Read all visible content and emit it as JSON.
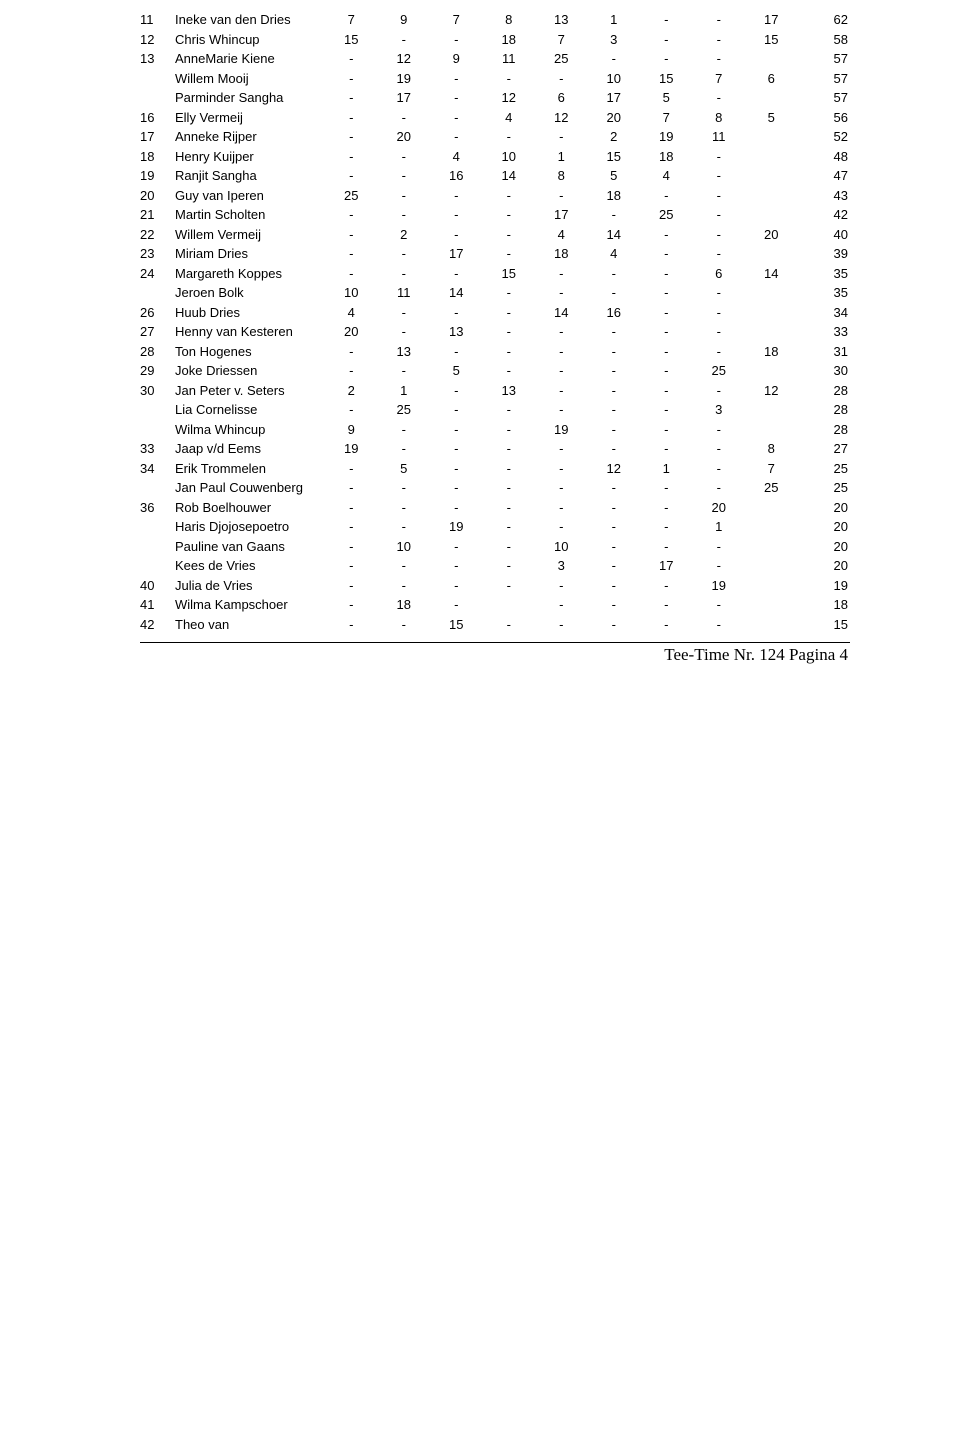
{
  "footer": "Tee-Time Nr. 124 Pagina  4",
  "cols": {
    "rank_align": "left",
    "name_align": "left",
    "value_align": "center",
    "total_align": "right",
    "font_size": 13,
    "text_color": "#000000",
    "background": "#ffffff",
    "rule_color": "#000000"
  },
  "rows": [
    {
      "rank": "11",
      "name": "Ineke van den Dries",
      "v": [
        "7",
        "9",
        "7",
        "8",
        "13",
        "1",
        "-",
        "-",
        "17"
      ],
      "total": "62"
    },
    {
      "rank": "12",
      "name": "Chris Whincup",
      "v": [
        "15",
        "-",
        "-",
        "18",
        "7",
        "3",
        "-",
        "-",
        "15"
      ],
      "total": "58"
    },
    {
      "rank": "13",
      "name": "AnneMarie Kiene",
      "v": [
        "-",
        "12",
        "9",
        "11",
        "25",
        "-",
        "-",
        "-",
        ""
      ],
      "total": "57"
    },
    {
      "rank": "",
      "name": "Willem Mooij",
      "v": [
        "-",
        "19",
        "-",
        "-",
        "-",
        "10",
        "15",
        "7",
        "6"
      ],
      "total": "57"
    },
    {
      "rank": "",
      "name": "Parminder Sangha",
      "v": [
        "-",
        "17",
        "-",
        "12",
        "6",
        "17",
        "5",
        "-",
        ""
      ],
      "total": "57"
    },
    {
      "rank": "16",
      "name": "Elly Vermeij",
      "v": [
        "-",
        "-",
        "-",
        "4",
        "12",
        "20",
        "7",
        "8",
        "5"
      ],
      "total": "56"
    },
    {
      "rank": "17",
      "name": "Anneke Rijper",
      "v": [
        "-",
        "20",
        "-",
        "-",
        "-",
        "2",
        "19",
        "11",
        ""
      ],
      "total": "52"
    },
    {
      "rank": "18",
      "name": "Henry Kuijper",
      "v": [
        "-",
        "-",
        "4",
        "10",
        "1",
        "15",
        "18",
        "-",
        ""
      ],
      "total": "48"
    },
    {
      "rank": "19",
      "name": "Ranjit Sangha",
      "v": [
        "-",
        "-",
        "16",
        "14",
        "8",
        "5",
        "4",
        "-",
        ""
      ],
      "total": "47"
    },
    {
      "rank": "20",
      "name": "Guy van Iperen",
      "v": [
        "25",
        "-",
        "-",
        "-",
        "-",
        "18",
        "-",
        "-",
        ""
      ],
      "total": "43"
    },
    {
      "rank": "21",
      "name": "Martin Scholten",
      "v": [
        "-",
        "-",
        "-",
        "-",
        "17",
        "-",
        "25",
        "-",
        ""
      ],
      "total": "42"
    },
    {
      "rank": "22",
      "name": "Willem Vermeij",
      "v": [
        "-",
        "2",
        "-",
        "-",
        "4",
        "14",
        "-",
        "-",
        "20"
      ],
      "total": "40"
    },
    {
      "rank": "23",
      "name": "Miriam Dries",
      "v": [
        "-",
        "-",
        "17",
        "-",
        "18",
        "4",
        "-",
        "-",
        ""
      ],
      "total": "39"
    },
    {
      "rank": "24",
      "name": "Margareth Koppes",
      "v": [
        "-",
        "-",
        "-",
        "15",
        "-",
        "-",
        "-",
        "6",
        "14"
      ],
      "total": "35"
    },
    {
      "rank": "",
      "name": "Jeroen Bolk",
      "v": [
        "10",
        "11",
        "14",
        "-",
        "-",
        "-",
        "-",
        "-",
        ""
      ],
      "total": "35"
    },
    {
      "rank": "26",
      "name": "Huub Dries",
      "v": [
        "4",
        "-",
        "-",
        "-",
        "14",
        "16",
        "-",
        "-",
        ""
      ],
      "total": "34"
    },
    {
      "rank": "27",
      "name": "Henny van Kesteren",
      "v": [
        "20",
        "-",
        "13",
        "-",
        "-",
        "-",
        "-",
        "-",
        ""
      ],
      "total": "33"
    },
    {
      "rank": "28",
      "name": "Ton Hogenes",
      "v": [
        "-",
        "13",
        "-",
        "-",
        "-",
        "-",
        "-",
        "-",
        "18"
      ],
      "total": "31"
    },
    {
      "rank": "29",
      "name": "Joke Driessen",
      "v": [
        "-",
        "-",
        "5",
        "-",
        "-",
        "-",
        "-",
        "25",
        ""
      ],
      "total": "30"
    },
    {
      "rank": "30",
      "name": "Jan Peter v. Seters",
      "v": [
        "2",
        "1",
        "-",
        "13",
        "-",
        "-",
        "-",
        "-",
        "12"
      ],
      "total": "28"
    },
    {
      "rank": "",
      "name": "Lia Cornelisse",
      "v": [
        "-",
        "25",
        "-",
        "-",
        "-",
        "-",
        "-",
        "3",
        ""
      ],
      "total": "28"
    },
    {
      "rank": "",
      "name": "Wilma Whincup",
      "v": [
        "9",
        "-",
        "-",
        "-",
        "19",
        "-",
        "-",
        "-",
        ""
      ],
      "total": "28"
    },
    {
      "rank": "33",
      "name": "Jaap v/d Eems",
      "v": [
        "19",
        "-",
        "-",
        "-",
        "-",
        "-",
        "-",
        "-",
        "8"
      ],
      "total": "27"
    },
    {
      "rank": "34",
      "name": "Erik Trommelen",
      "v": [
        "-",
        "5",
        "-",
        "-",
        "-",
        "12",
        "1",
        "-",
        "7"
      ],
      "total": "25"
    },
    {
      "rank": "",
      "name": "Jan Paul Couwenberg",
      "v": [
        "-",
        "-",
        "-",
        "-",
        "-",
        "-",
        "-",
        "-",
        "25"
      ],
      "total": "25"
    },
    {
      "rank": "36",
      "name": "Rob Boelhouwer",
      "v": [
        "-",
        "-",
        "-",
        "-",
        "-",
        "-",
        "-",
        "20",
        ""
      ],
      "total": "20"
    },
    {
      "rank": "",
      "name": "Haris Djojosepoetro",
      "v": [
        "-",
        "-",
        "19",
        "-",
        "-",
        "-",
        "-",
        "1",
        ""
      ],
      "total": "20"
    },
    {
      "rank": "",
      "name": "Pauline van Gaans",
      "v": [
        "-",
        "10",
        "-",
        "-",
        "10",
        "-",
        "-",
        "-",
        ""
      ],
      "total": "20"
    },
    {
      "rank": "",
      "name": "Kees de Vries",
      "v": [
        "-",
        "-",
        "-",
        "-",
        "3",
        "-",
        "17",
        "-",
        ""
      ],
      "total": "20"
    },
    {
      "rank": "40",
      "name": "Julia de Vries",
      "v": [
        "-",
        "-",
        "-",
        "-",
        "-",
        "-",
        "-",
        "19",
        ""
      ],
      "total": "19"
    },
    {
      "rank": "41",
      "name": "Wilma Kampschoer",
      "v": [
        "-",
        "18",
        "-",
        "",
        "-",
        "-",
        "-",
        "-",
        ""
      ],
      "total": "18"
    },
    {
      "rank": "42",
      "name": "Theo van",
      "v": [
        "-",
        "-",
        "15",
        "-",
        "-",
        "-",
        "-",
        "-",
        ""
      ],
      "total": "15"
    }
  ]
}
